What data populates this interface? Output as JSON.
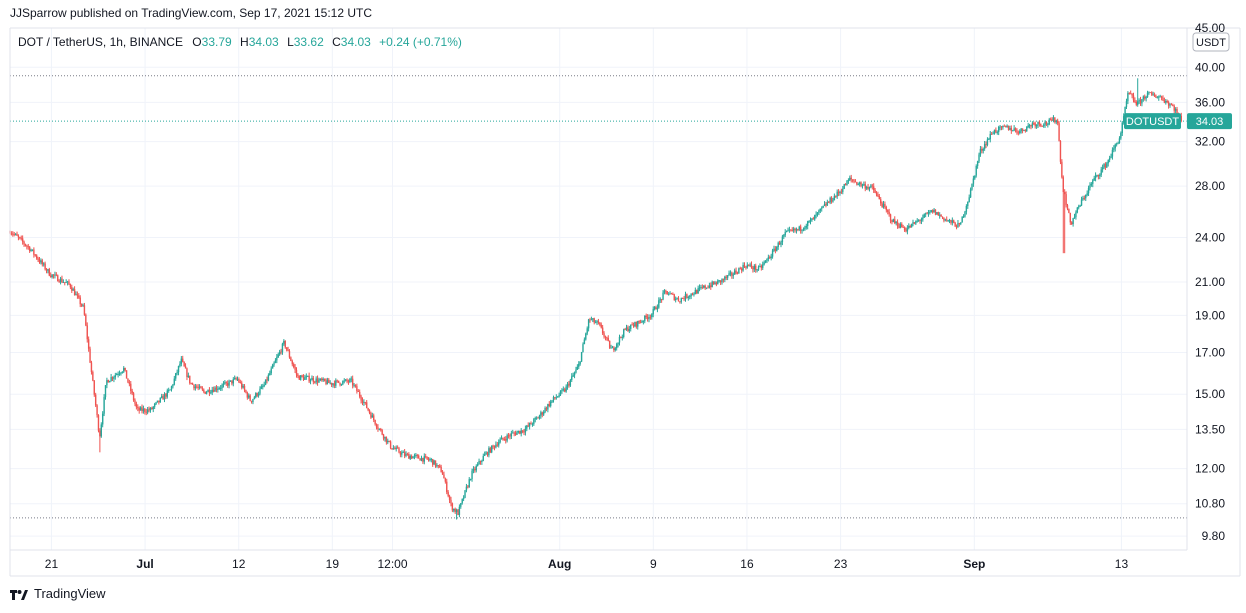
{
  "header": {
    "published_line": "JJSparrow published on TradingView.com, Sep 17, 2021 15:12 UTC"
  },
  "legend": {
    "symbol": "DOT / TetherUS, 1h, BINANCE",
    "o_label": "O",
    "o_value": "33.79",
    "h_label": "H",
    "h_value": "34.03",
    "l_label": "L",
    "l_value": "33.62",
    "c_label": "C",
    "c_value": "34.03",
    "change": "+0.24 (+0.71%)"
  },
  "price_scale": {
    "currency": "USDT",
    "ticks": [
      "45.00",
      "40.00",
      "36.00",
      "32.00",
      "28.00",
      "24.00",
      "21.00",
      "19.00",
      "17.00",
      "15.00",
      "13.50",
      "12.00",
      "10.80",
      "9.80"
    ]
  },
  "last_price": {
    "symbol_badge": "DOTUSDT",
    "value": "34.03"
  },
  "footer": {
    "brand": "TradingView"
  },
  "colors": {
    "up": "#26a69a",
    "down": "#ef5350",
    "accent": "#26a69a",
    "grid": "#f0f3fa",
    "text": "#131722",
    "axis_border": "#e0e3eb"
  },
  "chart_data": {
    "type": "candlestick",
    "symbol": "DOTUSDT",
    "interval": "1h",
    "exchange": "BINANCE",
    "log_scale": true,
    "ylim": [
      9.4,
      45
    ],
    "y_ticks": [
      45,
      40,
      36,
      32,
      28,
      24,
      21,
      19,
      17,
      15,
      13.5,
      12,
      10.8,
      9.8
    ],
    "x_tick_labels": [
      "21",
      "Jul",
      "12",
      "19",
      "12:00",
      "Aug",
      "9",
      "16",
      "23",
      "Sep",
      "13"
    ],
    "x_tick_positions": [
      3.1,
      10.1,
      17.1,
      24.1,
      28.6,
      41.1,
      48.1,
      55.1,
      62.1,
      72.1,
      83.1
    ],
    "horizontal_lines": [
      39.0,
      34.03,
      10.35
    ],
    "x_range": [
      0,
      88
    ],
    "path": [
      [
        0,
        24.5
      ],
      [
        1.5,
        23.2
      ],
      [
        3,
        21.5
      ],
      [
        4.5,
        20.8
      ],
      [
        5.5,
        19.4
      ],
      [
        6,
        16.5
      ],
      [
        6.7,
        13.2
      ],
      [
        7.2,
        15.6
      ],
      [
        8.5,
        16.2
      ],
      [
        9.5,
        14.3
      ],
      [
        10.5,
        14.3
      ],
      [
        12,
        15.2
      ],
      [
        12.8,
        16.6
      ],
      [
        13.5,
        15.5
      ],
      [
        14.5,
        15.1
      ],
      [
        16,
        15.4
      ],
      [
        17,
        15.7
      ],
      [
        18,
        14.7
      ],
      [
        19,
        15.4
      ],
      [
        20.5,
        17.5
      ],
      [
        21.5,
        15.8
      ],
      [
        22.5,
        15.7
      ],
      [
        24,
        15.5
      ],
      [
        25.5,
        15.6
      ],
      [
        26.5,
        14.6
      ],
      [
        27.5,
        13.6
      ],
      [
        28.5,
        12.8
      ],
      [
        29.5,
        12.5
      ],
      [
        30.5,
        12.4
      ],
      [
        31.5,
        12.3
      ],
      [
        32.3,
        11.9
      ],
      [
        33,
        10.7
      ],
      [
        33.5,
        10.5
      ],
      [
        34.5,
        11.8
      ],
      [
        35.5,
        12.5
      ],
      [
        36.5,
        13.0
      ],
      [
        37.5,
        13.3
      ],
      [
        38.5,
        13.5
      ],
      [
        39.5,
        14.0
      ],
      [
        40.5,
        14.7
      ],
      [
        41.5,
        15.2
      ],
      [
        42.5,
        16.3
      ],
      [
        43.3,
        18.8
      ],
      [
        44,
        18.5
      ],
      [
        45,
        17.1
      ],
      [
        46,
        18.2
      ],
      [
        47,
        18.6
      ],
      [
        48,
        19.1
      ],
      [
        49,
        20.4
      ],
      [
        50,
        19.9
      ],
      [
        51,
        20.3
      ],
      [
        52,
        20.7
      ],
      [
        53,
        21.0
      ],
      [
        54,
        21.5
      ],
      [
        55,
        22.1
      ],
      [
        56,
        21.8
      ],
      [
        57,
        22.9
      ],
      [
        58,
        24.3
      ],
      [
        59,
        24.6
      ],
      [
        60,
        25.3
      ],
      [
        61,
        26.5
      ],
      [
        62,
        27.5
      ],
      [
        62.8,
        28.6
      ],
      [
        63.5,
        28.2
      ],
      [
        64.5,
        27.8
      ],
      [
        65.2,
        26.5
      ],
      [
        66,
        25.2
      ],
      [
        67,
        24.6
      ],
      [
        68,
        25.3
      ],
      [
        69,
        26.0
      ],
      [
        70,
        25.3
      ],
      [
        71,
        24.8
      ],
      [
        71.8,
        27.5
      ],
      [
        72.5,
        31.0
      ],
      [
        73.5,
        33.0
      ],
      [
        74.5,
        33.4
      ],
      [
        75.5,
        33.0
      ],
      [
        76.5,
        33.8
      ],
      [
        77.5,
        33.8
      ],
      [
        78.3,
        34.3
      ],
      [
        78.7,
        28.0
      ],
      [
        79.3,
        25.0
      ],
      [
        80,
        26.5
      ],
      [
        81,
        28.5
      ],
      [
        82,
        30.0
      ],
      [
        83,
        32.5
      ],
      [
        83.6,
        37.0
      ],
      [
        84.3,
        35.8
      ],
      [
        85,
        36.9
      ],
      [
        86,
        36.6
      ],
      [
        87,
        35.5
      ],
      [
        87.6,
        34.03
      ]
    ],
    "extremes": [
      {
        "x": 6.7,
        "low": 12.6
      },
      {
        "x": 33.4,
        "low": 10.3
      },
      {
        "x": 78.8,
        "low": 22.9
      },
      {
        "x": 84.3,
        "high": 38.7
      }
    ]
  }
}
